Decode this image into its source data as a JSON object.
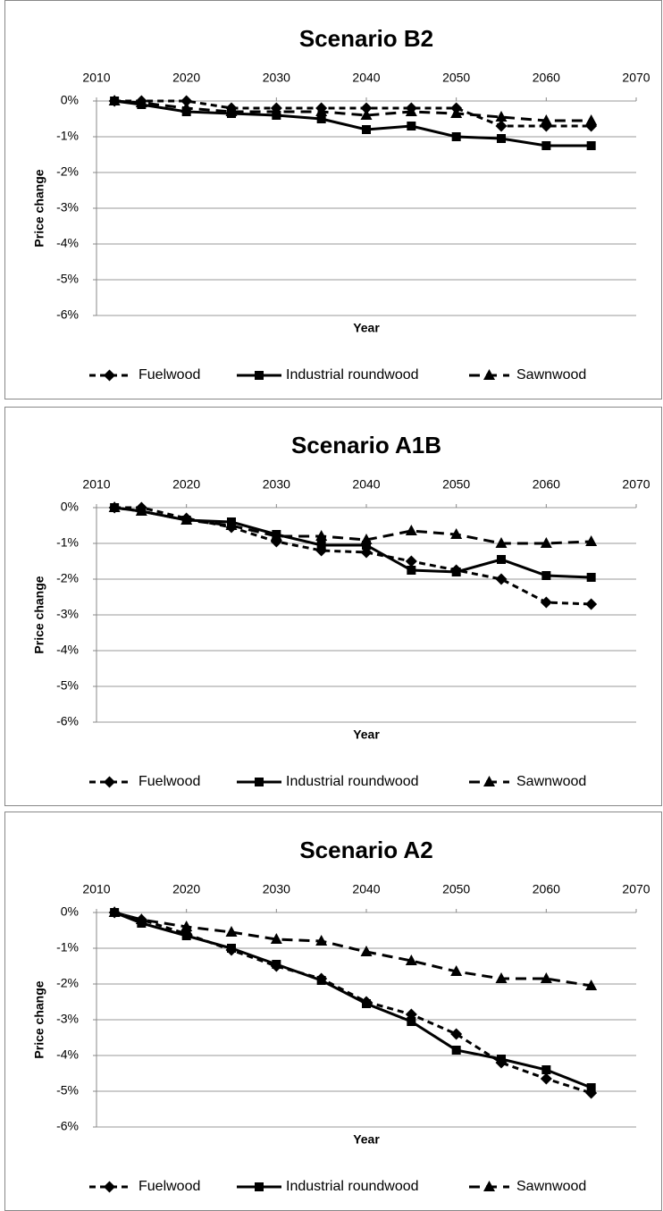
{
  "chart_data": [
    {
      "type": "line",
      "title": "Scenario B2",
      "xlabel": "Year",
      "ylabel": "Price change",
      "x": [
        2012,
        2015,
        2020,
        2025,
        2030,
        2035,
        2040,
        2045,
        2050,
        2055,
        2060,
        2065
      ],
      "xlim": [
        2010,
        2070
      ],
      "xticks": [
        2010,
        2020,
        2030,
        2040,
        2050,
        2060,
        2070
      ],
      "ylim": [
        -6,
        0
      ],
      "yticks": [
        {
          "value": 0,
          "label": "0%"
        },
        {
          "value": -1,
          "label": "-1%"
        },
        {
          "value": -2,
          "label": "-2%"
        },
        {
          "value": -3,
          "label": "-3%"
        },
        {
          "value": -4,
          "label": "-4%"
        },
        {
          "value": -5,
          "label": "-5%"
        },
        {
          "value": -6,
          "label": "-6%"
        }
      ],
      "grid": true,
      "series": [
        {
          "name": "Fuelwood",
          "color": "#000000",
          "marker": "diamond",
          "dashed": true,
          "values": [
            0,
            0,
            0,
            -0.2,
            -0.2,
            -0.2,
            -0.2,
            -0.2,
            -0.2,
            -0.7,
            -0.7,
            -0.7
          ]
        },
        {
          "name": "Industrial roundwood",
          "color": "#000000",
          "marker": "square",
          "dashed": false,
          "values": [
            0,
            -0.1,
            -0.3,
            -0.35,
            -0.4,
            -0.5,
            -0.8,
            -0.7,
            -1.0,
            -1.05,
            -1.25,
            -1.25
          ]
        },
        {
          "name": "Sawnwood",
          "color": "#000000",
          "marker": "triangle",
          "dashed": true,
          "values": [
            0,
            -0.05,
            -0.2,
            -0.3,
            -0.3,
            -0.3,
            -0.4,
            -0.3,
            -0.35,
            -0.45,
            -0.55,
            -0.55
          ]
        }
      ]
    },
    {
      "type": "line",
      "title": "Scenario A1B",
      "xlabel": "Year",
      "ylabel": "Price change",
      "x": [
        2012,
        2015,
        2020,
        2025,
        2030,
        2035,
        2040,
        2045,
        2050,
        2055,
        2060,
        2065
      ],
      "xlim": [
        2010,
        2070
      ],
      "xticks": [
        2010,
        2020,
        2030,
        2040,
        2050,
        2060,
        2070
      ],
      "ylim": [
        -6,
        0
      ],
      "yticks": [
        {
          "value": 0,
          "label": "0%"
        },
        {
          "value": -1,
          "label": "-1%"
        },
        {
          "value": -2,
          "label": "-2%"
        },
        {
          "value": -3,
          "label": "-3%"
        },
        {
          "value": -4,
          "label": "-4%"
        },
        {
          "value": -5,
          "label": "-5%"
        },
        {
          "value": -6,
          "label": "-6%"
        }
      ],
      "grid": true,
      "series": [
        {
          "name": "Fuelwood",
          "color": "#000000",
          "marker": "diamond",
          "dashed": true,
          "values": [
            0,
            0,
            -0.3,
            -0.55,
            -0.95,
            -1.2,
            -1.25,
            -1.5,
            -1.75,
            -2.0,
            -2.65,
            -2.7
          ]
        },
        {
          "name": "Industrial roundwood",
          "color": "#000000",
          "marker": "square",
          "dashed": false,
          "values": [
            0,
            -0.1,
            -0.35,
            -0.4,
            -0.75,
            -1.05,
            -1.05,
            -1.75,
            -1.8,
            -1.45,
            -1.9,
            -1.95
          ]
        },
        {
          "name": "Sawnwood",
          "color": "#000000",
          "marker": "triangle",
          "dashed": true,
          "values": [
            0,
            -0.1,
            -0.35,
            -0.5,
            -0.8,
            -0.8,
            -0.9,
            -0.65,
            -0.75,
            -1.0,
            -1.0,
            -0.95
          ]
        }
      ]
    },
    {
      "type": "line",
      "title": "Scenario A2",
      "xlabel": "Year",
      "ylabel": "Price change",
      "x": [
        2012,
        2015,
        2020,
        2025,
        2030,
        2035,
        2040,
        2045,
        2050,
        2055,
        2060,
        2065
      ],
      "xlim": [
        2010,
        2070
      ],
      "xticks": [
        2010,
        2020,
        2030,
        2040,
        2050,
        2060,
        2070
      ],
      "ylim": [
        -6,
        0
      ],
      "yticks": [
        {
          "value": 0,
          "label": "0%"
        },
        {
          "value": -1,
          "label": "-1%"
        },
        {
          "value": -2,
          "label": "-2%"
        },
        {
          "value": -3,
          "label": "-3%"
        },
        {
          "value": -4,
          "label": "-4%"
        },
        {
          "value": -5,
          "label": "-5%"
        },
        {
          "value": -6,
          "label": "-6%"
        }
      ],
      "grid": true,
      "series": [
        {
          "name": "Fuelwood",
          "color": "#000000",
          "marker": "diamond",
          "dashed": true,
          "values": [
            0,
            -0.2,
            -0.6,
            -1.05,
            -1.5,
            -1.85,
            -2.5,
            -2.85,
            -3.4,
            -4.2,
            -4.65,
            -5.05
          ]
        },
        {
          "name": "Industrial roundwood",
          "color": "#000000",
          "marker": "square",
          "dashed": false,
          "values": [
            0,
            -0.3,
            -0.65,
            -1.0,
            -1.45,
            -1.9,
            -2.55,
            -3.05,
            -3.85,
            -4.1,
            -4.4,
            -4.9
          ]
        },
        {
          "name": "Sawnwood",
          "color": "#000000",
          "marker": "triangle",
          "dashed": true,
          "values": [
            0,
            -0.2,
            -0.4,
            -0.55,
            -0.75,
            -0.8,
            -1.1,
            -1.35,
            -1.65,
            -1.85,
            -1.85,
            -2.05
          ]
        }
      ]
    }
  ]
}
